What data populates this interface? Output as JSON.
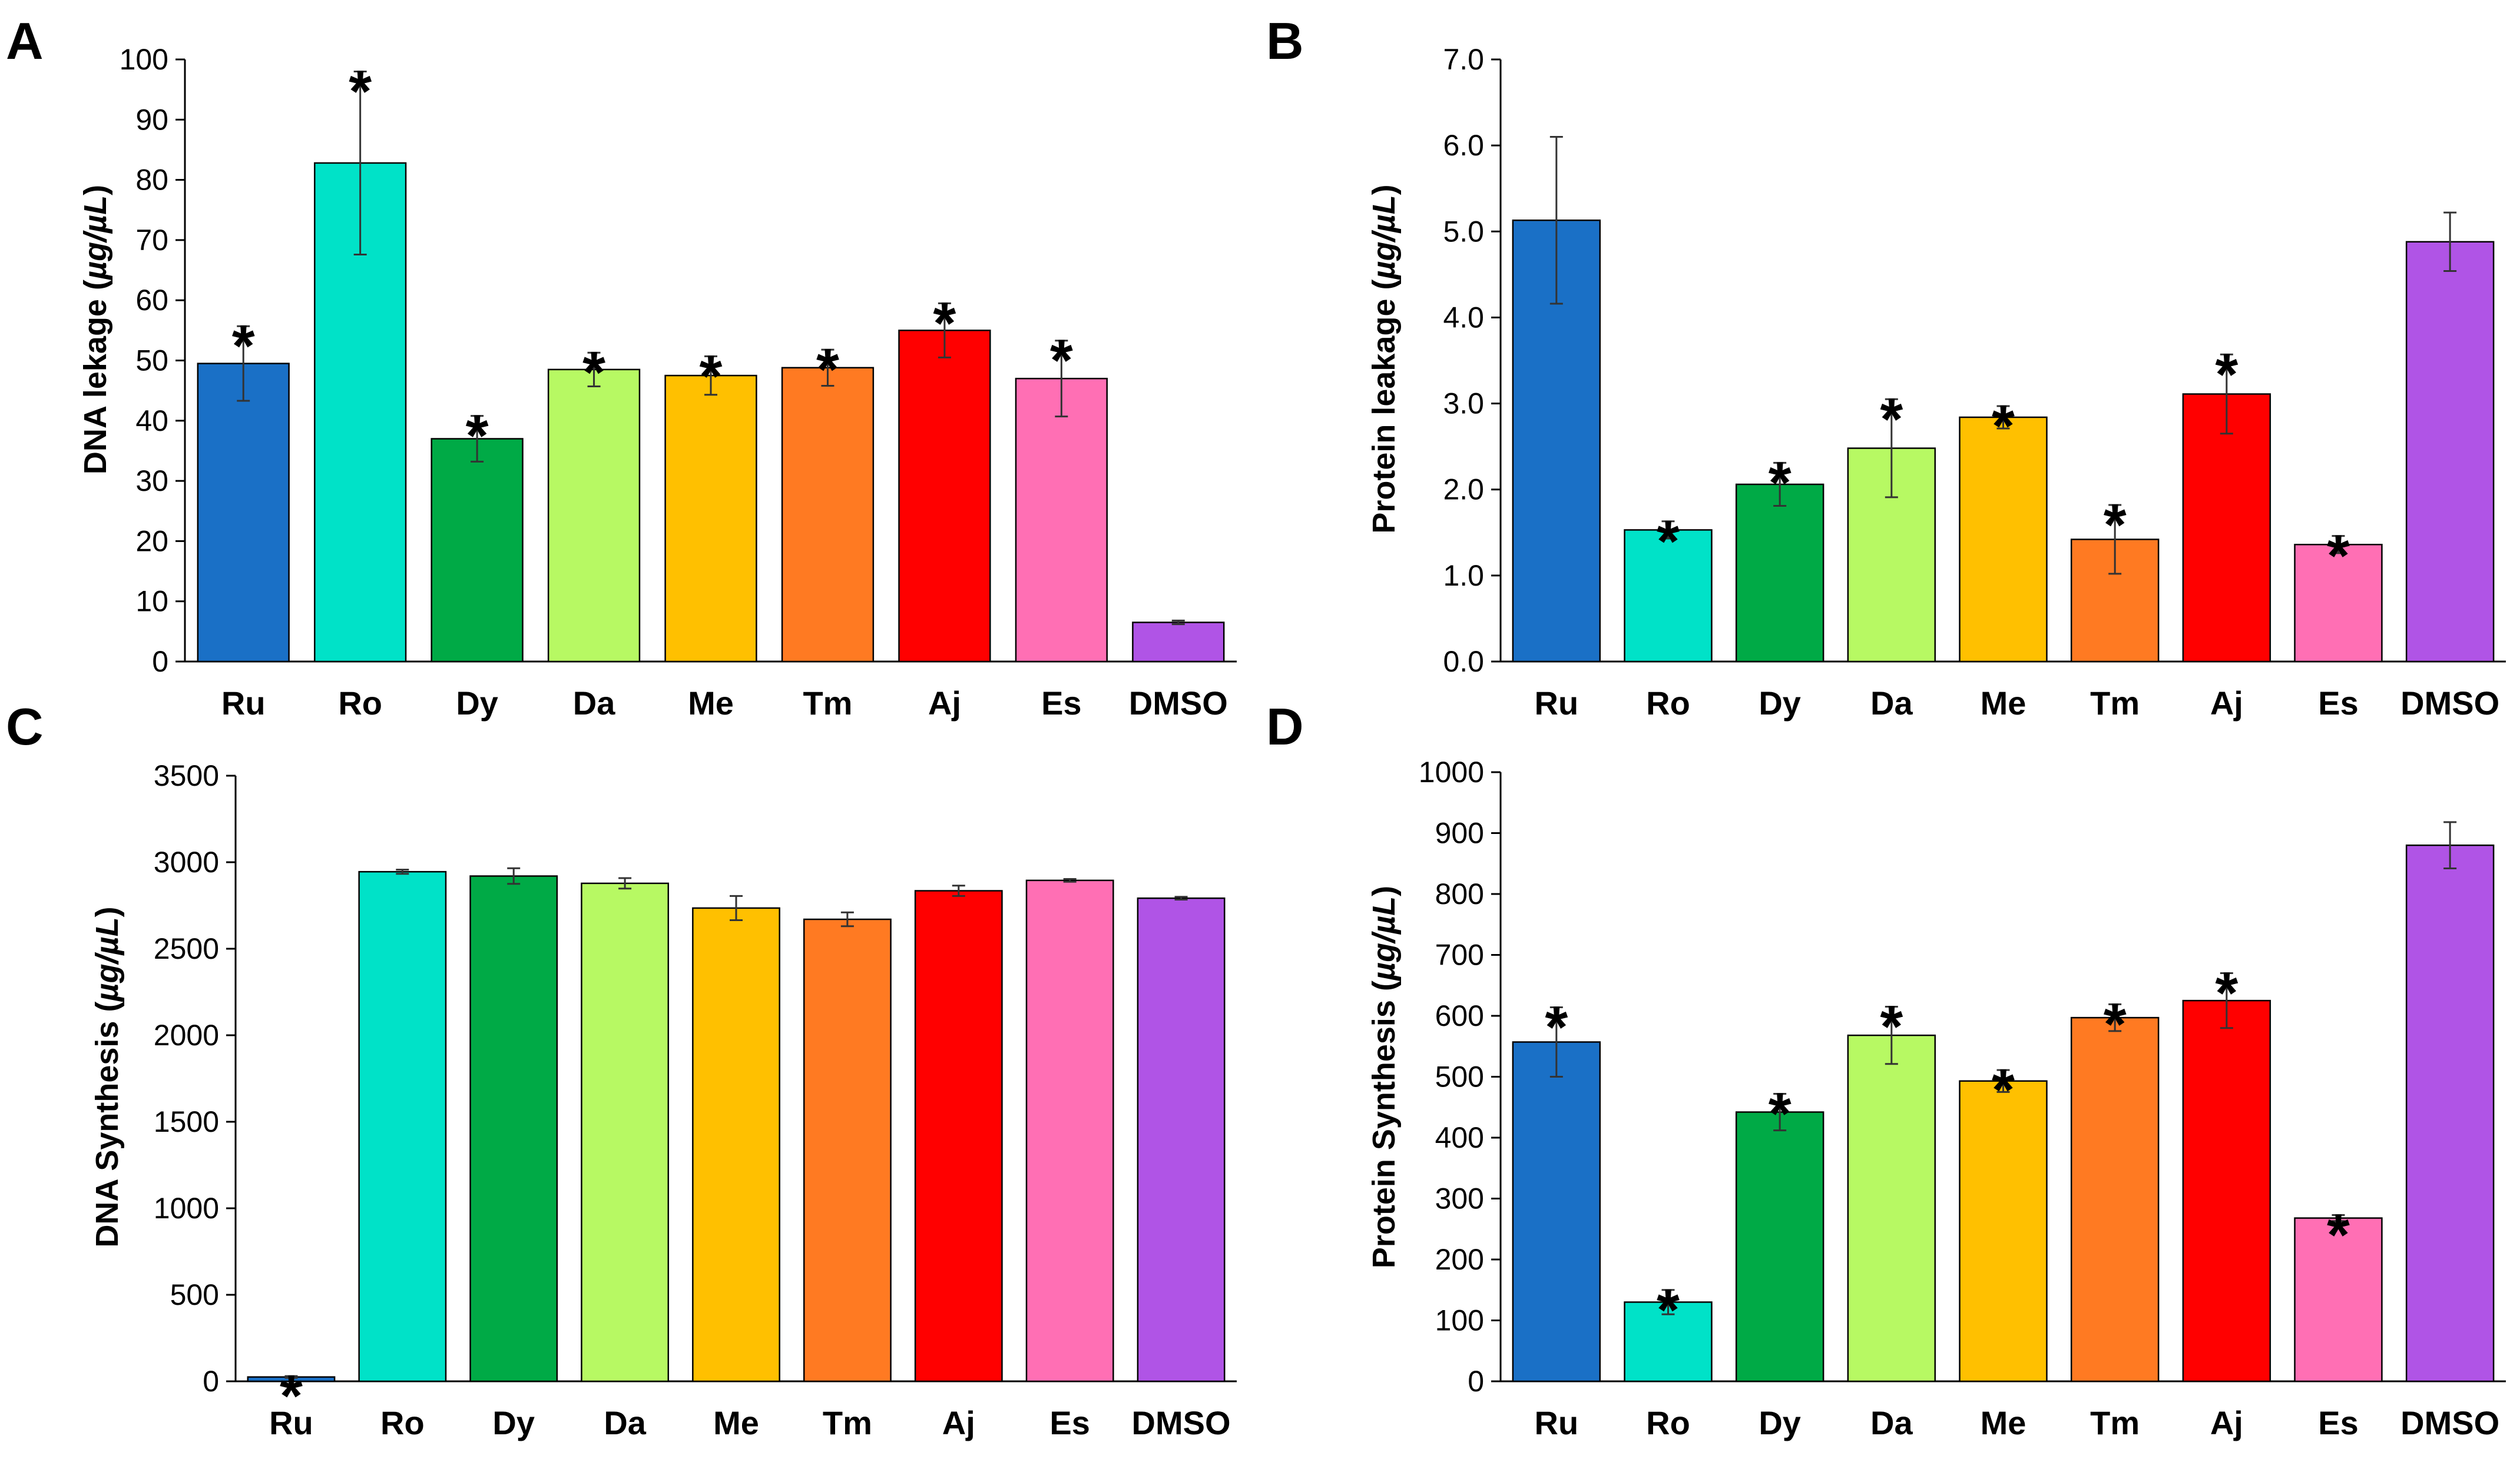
{
  "chart_data": [
    {
      "panel": "A",
      "type": "bar",
      "categories": [
        "Ru",
        "Ro",
        "Dy",
        "Da",
        "Me",
        "Tm",
        "Aj",
        "Es",
        "DMSO"
      ],
      "values": [
        49.5,
        82.8,
        37.0,
        48.5,
        47.5,
        48.8,
        55.0,
        47.0,
        6.5
      ],
      "errors": [
        6.2,
        15.2,
        3.8,
        2.8,
        3.2,
        3.0,
        4.5,
        6.3,
        0.3
      ],
      "significant": [
        true,
        true,
        true,
        true,
        true,
        true,
        true,
        true,
        false
      ],
      "significance_marker": "*",
      "colors": [
        "#1A70C6",
        "#00E2C8",
        "#00AA46",
        "#B7F963",
        "#FFC000",
        "#FF7A22",
        "#FF0000",
        "#FF6FB4",
        "#B054E6"
      ],
      "ylabel_prefix": "DNA lekage (",
      "ylabel_unit": "µg/µL",
      "ylabel_suffix": ")",
      "ylim": [
        0,
        100
      ],
      "yticks": [
        "0",
        "10",
        "20",
        "30",
        "40",
        "50",
        "60",
        "70",
        "80",
        "90",
        "100"
      ]
    },
    {
      "panel": "B",
      "type": "bar",
      "categories": [
        "Ru",
        "Ro",
        "Dy",
        "Da",
        "Me",
        "Tm",
        "Aj",
        "Es",
        "DMSO"
      ],
      "values": [
        5.13,
        1.53,
        2.06,
        2.48,
        2.84,
        1.42,
        3.11,
        1.36,
        4.88
      ],
      "errors": [
        0.97,
        0.1,
        0.25,
        0.57,
        0.13,
        0.4,
        0.46,
        0.1,
        0.34
      ],
      "significant": [
        false,
        true,
        true,
        true,
        true,
        true,
        true,
        true,
        false
      ],
      "significance_marker": "*",
      "colors": [
        "#1A70C6",
        "#00E2C8",
        "#00AA46",
        "#B7F963",
        "#FFC000",
        "#FF7A22",
        "#FF0000",
        "#FF6FB4",
        "#B054E6"
      ],
      "ylabel_prefix": "Protein leakage (",
      "ylabel_unit": "µg/µL",
      "ylabel_suffix": ")",
      "ylim": [
        0,
        7
      ],
      "yticks": [
        "0.0",
        "1.0",
        "2.0",
        "3.0",
        "4.0",
        "5.0",
        "6.0",
        "7.0"
      ]
    },
    {
      "panel": "C",
      "type": "bar",
      "categories": [
        "Ru",
        "Ro",
        "Dy",
        "Da",
        "Me",
        "Tm",
        "Aj",
        "Es",
        "DMSO"
      ],
      "values": [
        25,
        2945,
        2920,
        2878,
        2735,
        2670,
        2835,
        2895,
        2792
      ],
      "errors": [
        5,
        12,
        45,
        30,
        70,
        40,
        30,
        8,
        8
      ],
      "significant": [
        true,
        false,
        false,
        false,
        false,
        false,
        false,
        false,
        false
      ],
      "significance_marker": "*",
      "colors": [
        "#1A70C6",
        "#00E2C8",
        "#00AA46",
        "#B7F963",
        "#FFC000",
        "#FF7A22",
        "#FF0000",
        "#FF6FB4",
        "#B054E6"
      ],
      "ylabel_prefix": "DNA Synthesis (",
      "ylabel_unit": "µg/µL",
      "ylabel_suffix": ")",
      "ylim": [
        0,
        3500
      ],
      "yticks": [
        "0",
        "500",
        "1000",
        "1500",
        "2000",
        "2500",
        "3000",
        "3500"
      ]
    },
    {
      "panel": "D",
      "type": "bar",
      "categories": [
        "Ru",
        "Ro",
        "Dy",
        "Da",
        "Me",
        "Tm",
        "Aj",
        "Es",
        "DMSO"
      ],
      "values": [
        557,
        130,
        442,
        568,
        493,
        597,
        625,
        268,
        880
      ],
      "errors": [
        57,
        20,
        30,
        47,
        18,
        22,
        45,
        5,
        38
      ],
      "significant": [
        true,
        true,
        true,
        true,
        true,
        true,
        true,
        true,
        false
      ],
      "significance_marker": "*",
      "colors": [
        "#1A70C6",
        "#00E2C8",
        "#00AA46",
        "#B7F963",
        "#FFC000",
        "#FF7A22",
        "#FF0000",
        "#FF6FB4",
        "#B054E6"
      ],
      "ylabel_prefix": "Protein Synthesis (",
      "ylabel_unit": "µg/µL",
      "ylabel_suffix": ")",
      "ylim": [
        0,
        1000
      ],
      "yticks": [
        "0",
        "100",
        "200",
        "300",
        "400",
        "500",
        "600",
        "700",
        "800",
        "900",
        "1000"
      ]
    }
  ]
}
